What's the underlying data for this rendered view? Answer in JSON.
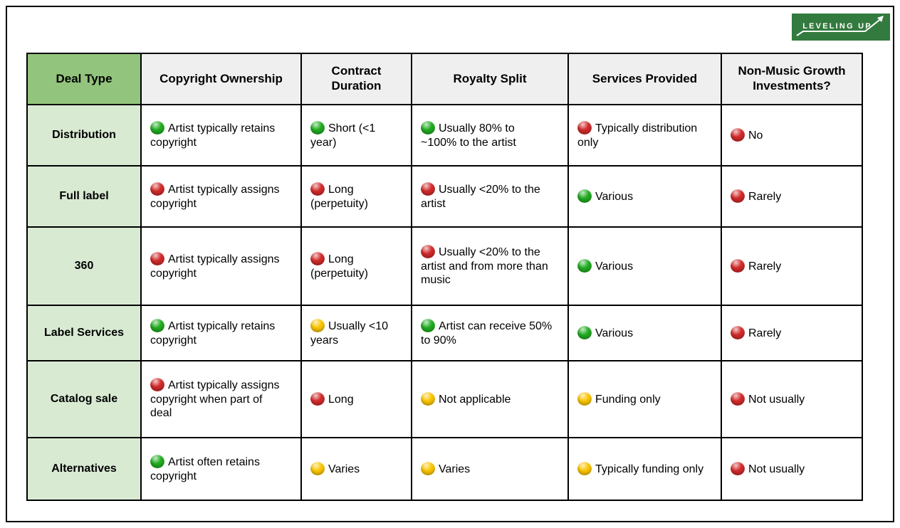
{
  "logo": {
    "text": "LEVELING UP",
    "bg_color": "#337a3e",
    "fg_color": "#ffffff"
  },
  "table": {
    "columns": [
      "Deal Type",
      "Copyright Ownership",
      "Contract Duration",
      "Royalty Split",
      "Services Provided",
      "Non-Music Growth Investments?"
    ],
    "status_colors": {
      "green": "#21ad21",
      "red": "#d22b2b",
      "yellow": "#fcc602"
    },
    "header_colors": {
      "deal_type_header_bg": "#93c47d",
      "other_header_bg": "#efefef",
      "row_label_bg": "#d9ead3"
    },
    "rows": [
      {
        "deal_type": "Distribution",
        "cells": [
          {
            "status": "green",
            "text": "Artist typically retains copyright"
          },
          {
            "status": "green",
            "text": "Short (<1 year)"
          },
          {
            "status": "green",
            "text": "Usually 80% to ~100% to the artist"
          },
          {
            "status": "red",
            "text": "Typically distribution only"
          },
          {
            "status": "red",
            "text": "No"
          }
        ]
      },
      {
        "deal_type": "Full label",
        "cells": [
          {
            "status": "red",
            "text": "Artist typically assigns copyright"
          },
          {
            "status": "red",
            "text": "Long (perpetuity)"
          },
          {
            "status": "red",
            "text": "Usually <20% to the artist"
          },
          {
            "status": "green",
            "text": "Various"
          },
          {
            "status": "red",
            "text": "Rarely"
          }
        ]
      },
      {
        "deal_type": "360",
        "cells": [
          {
            "status": "red",
            "text": "Artist typically assigns copyright"
          },
          {
            "status": "red",
            "text": "Long (perpetuity)"
          },
          {
            "status": "red",
            "text": "Usually <20% to the artist and from more than music"
          },
          {
            "status": "green",
            "text": "Various"
          },
          {
            "status": "red",
            "text": "Rarely"
          }
        ]
      },
      {
        "deal_type": "Label Services",
        "cells": [
          {
            "status": "green",
            "text": "Artist typically retains copyright"
          },
          {
            "status": "yellow",
            "text": "Usually <10 years"
          },
          {
            "status": "green",
            "text": "Artist can receive 50% to 90%"
          },
          {
            "status": "green",
            "text": "Various"
          },
          {
            "status": "red",
            "text": "Rarely"
          }
        ]
      },
      {
        "deal_type": "Catalog sale",
        "cells": [
          {
            "status": "red",
            "text": "Artist typically assigns copyright when part of deal"
          },
          {
            "status": "red",
            "text": "Long"
          },
          {
            "status": "yellow",
            "text": "Not applicable"
          },
          {
            "status": "yellow",
            "text": "Funding only"
          },
          {
            "status": "red",
            "text": "Not usually"
          }
        ]
      },
      {
        "deal_type": "Alternatives",
        "cells": [
          {
            "status": "green",
            "text": "Artist often retains copyright"
          },
          {
            "status": "yellow",
            "text": "Varies"
          },
          {
            "status": "yellow",
            "text": "Varies"
          },
          {
            "status": "yellow",
            "text": "Typically funding only"
          },
          {
            "status": "red",
            "text": "Not usually"
          }
        ]
      }
    ]
  }
}
